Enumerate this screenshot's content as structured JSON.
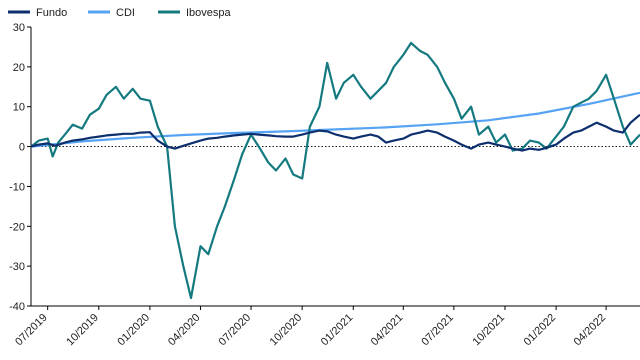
{
  "chart_data": {
    "type": "line",
    "title": "",
    "xlabel": "",
    "ylabel": "",
    "legend_position": "top-left",
    "grid": false,
    "zero_line": "dotted",
    "ylim": [
      -40,
      30
    ],
    "yticks": [
      30,
      20,
      10,
      0,
      -10,
      -20,
      -30,
      -40
    ],
    "xlim": [
      "2019-06-01",
      "2022-06-01"
    ],
    "xticks": [
      {
        "label": "07/2019",
        "date": "2019-07-01"
      },
      {
        "label": "10/2019",
        "date": "2019-10-01"
      },
      {
        "label": "01/2020",
        "date": "2020-01-01"
      },
      {
        "label": "04/2020",
        "date": "2020-04-01"
      },
      {
        "label": "07/2020",
        "date": "2020-07-01"
      },
      {
        "label": "10/2020",
        "date": "2020-10-01"
      },
      {
        "label": "01/2021",
        "date": "2021-01-01"
      },
      {
        "label": "04/2021",
        "date": "2021-04-01"
      },
      {
        "label": "07/2021",
        "date": "2021-07-01"
      },
      {
        "label": "10/2021",
        "date": "2021-10-01"
      },
      {
        "label": "01/2022",
        "date": "2022-01-01"
      },
      {
        "label": "04/2022",
        "date": "2022-04-01"
      }
    ],
    "series": [
      {
        "name": "Fundo",
        "color": "#0d2f6e",
        "points": [
          [
            "2019-06-01",
            0
          ],
          [
            "2019-06-15",
            0.5
          ],
          [
            "2019-07-01",
            0.8
          ],
          [
            "2019-07-15",
            0.2
          ],
          [
            "2019-08-01",
            1.0
          ],
          [
            "2019-08-15",
            1.5
          ],
          [
            "2019-09-01",
            1.8
          ],
          [
            "2019-09-15",
            2.2
          ],
          [
            "2019-10-01",
            2.5
          ],
          [
            "2019-10-15",
            2.8
          ],
          [
            "2019-11-01",
            3.0
          ],
          [
            "2019-11-15",
            3.2
          ],
          [
            "2019-12-01",
            3.2
          ],
          [
            "2019-12-15",
            3.5
          ],
          [
            "2020-01-01",
            3.6
          ],
          [
            "2020-01-15",
            1.5
          ],
          [
            "2020-02-01",
            0.0
          ],
          [
            "2020-02-15",
            -0.5
          ],
          [
            "2020-03-01",
            0.2
          ],
          [
            "2020-03-15",
            0.8
          ],
          [
            "2020-04-01",
            1.5
          ],
          [
            "2020-04-15",
            2.0
          ],
          [
            "2020-05-01",
            2.2
          ],
          [
            "2020-05-15",
            2.5
          ],
          [
            "2020-06-01",
            2.8
          ],
          [
            "2020-06-15",
            3.0
          ],
          [
            "2020-07-01",
            3.2
          ],
          [
            "2020-07-15",
            3.0
          ],
          [
            "2020-08-01",
            2.8
          ],
          [
            "2020-08-15",
            2.6
          ],
          [
            "2020-09-01",
            2.5
          ],
          [
            "2020-09-15",
            2.5
          ],
          [
            "2020-10-01",
            3.0
          ],
          [
            "2020-10-15",
            3.5
          ],
          [
            "2020-11-01",
            4.0
          ],
          [
            "2020-11-15",
            3.8
          ],
          [
            "2020-12-01",
            3.0
          ],
          [
            "2020-12-15",
            2.5
          ],
          [
            "2021-01-01",
            2.0
          ],
          [
            "2021-01-15",
            2.5
          ],
          [
            "2021-02-01",
            3.0
          ],
          [
            "2021-02-15",
            2.5
          ],
          [
            "2021-03-01",
            1.0
          ],
          [
            "2021-03-15",
            1.5
          ],
          [
            "2021-04-01",
            2.0
          ],
          [
            "2021-04-15",
            3.0
          ],
          [
            "2021-05-01",
            3.5
          ],
          [
            "2021-05-15",
            4.0
          ],
          [
            "2021-06-01",
            3.5
          ],
          [
            "2021-06-15",
            2.5
          ],
          [
            "2021-07-01",
            1.5
          ],
          [
            "2021-07-15",
            0.5
          ],
          [
            "2021-08-01",
            -0.5
          ],
          [
            "2021-08-15",
            0.5
          ],
          [
            "2021-09-01",
            1.0
          ],
          [
            "2021-09-15",
            0.5
          ],
          [
            "2021-10-01",
            0.0
          ],
          [
            "2021-10-15",
            -0.5
          ],
          [
            "2021-11-01",
            -1.0
          ],
          [
            "2021-11-15",
            -0.5
          ],
          [
            "2021-12-01",
            -0.8
          ],
          [
            "2021-12-15",
            -0.3
          ],
          [
            "2022-01-01",
            0.5
          ],
          [
            "2022-01-15",
            2.0
          ],
          [
            "2022-02-01",
            3.5
          ],
          [
            "2022-02-15",
            4.0
          ],
          [
            "2022-03-01",
            5.0
          ],
          [
            "2022-03-15",
            6.0
          ],
          [
            "2022-04-01",
            5.0
          ],
          [
            "2022-04-15",
            4.0
          ],
          [
            "2022-05-01",
            3.5
          ],
          [
            "2022-05-15",
            6.0
          ],
          [
            "2022-06-01",
            8.0
          ]
        ]
      },
      {
        "name": "CDI",
        "color": "#55a3f2",
        "points": [
          [
            "2019-06-01",
            0
          ],
          [
            "2019-09-01",
            1.3
          ],
          [
            "2019-12-01",
            2.2
          ],
          [
            "2020-03-01",
            2.9
          ],
          [
            "2020-06-01",
            3.4
          ],
          [
            "2020-09-01",
            3.8
          ],
          [
            "2020-12-01",
            4.3
          ],
          [
            "2021-03-01",
            4.8
          ],
          [
            "2021-06-01",
            5.6
          ],
          [
            "2021-09-01",
            6.6
          ],
          [
            "2021-12-01",
            8.3
          ],
          [
            "2022-03-01",
            10.7
          ],
          [
            "2022-06-01",
            13.5
          ]
        ]
      },
      {
        "name": "Ibovespa",
        "color": "#147a80",
        "points": [
          [
            "2019-06-01",
            0
          ],
          [
            "2019-06-15",
            1.5
          ],
          [
            "2019-07-01",
            2.0
          ],
          [
            "2019-07-10",
            -2.5
          ],
          [
            "2019-07-20",
            1.0
          ],
          [
            "2019-08-01",
            3.0
          ],
          [
            "2019-08-15",
            5.5
          ],
          [
            "2019-09-01",
            4.5
          ],
          [
            "2019-09-15",
            8.0
          ],
          [
            "2019-10-01",
            9.5
          ],
          [
            "2019-10-15",
            13.0
          ],
          [
            "2019-11-01",
            15.0
          ],
          [
            "2019-11-15",
            12.0
          ],
          [
            "2019-12-01",
            14.5
          ],
          [
            "2019-12-15",
            12.0
          ],
          [
            "2020-01-01",
            11.5
          ],
          [
            "2020-01-15",
            5.0
          ],
          [
            "2020-02-01",
            0.0
          ],
          [
            "2020-02-15",
            -20.0
          ],
          [
            "2020-03-01",
            -30.0
          ],
          [
            "2020-03-15",
            -38.0
          ],
          [
            "2020-04-01",
            -25.0
          ],
          [
            "2020-04-15",
            -27.0
          ],
          [
            "2020-05-01",
            -20.0
          ],
          [
            "2020-05-15",
            -15.0
          ],
          [
            "2020-06-01",
            -8.0
          ],
          [
            "2020-06-15",
            -2.0
          ],
          [
            "2020-07-01",
            3.0
          ],
          [
            "2020-07-15",
            0.0
          ],
          [
            "2020-08-01",
            -4.0
          ],
          [
            "2020-08-15",
            -6.0
          ],
          [
            "2020-09-01",
            -3.0
          ],
          [
            "2020-09-15",
            -7.0
          ],
          [
            "2020-10-01",
            -8.0
          ],
          [
            "2020-10-15",
            5.0
          ],
          [
            "2020-11-01",
            10.0
          ],
          [
            "2020-11-15",
            21.0
          ],
          [
            "2020-12-01",
            12.0
          ],
          [
            "2020-12-15",
            16.0
          ],
          [
            "2021-01-01",
            18.0
          ],
          [
            "2021-01-15",
            15.0
          ],
          [
            "2021-02-01",
            12.0
          ],
          [
            "2021-02-15",
            14.0
          ],
          [
            "2021-03-01",
            16.0
          ],
          [
            "2021-03-15",
            20.0
          ],
          [
            "2021-04-01",
            23.0
          ],
          [
            "2021-04-15",
            26.0
          ],
          [
            "2021-05-01",
            24.0
          ],
          [
            "2021-05-15",
            23.0
          ],
          [
            "2021-06-01",
            20.0
          ],
          [
            "2021-06-15",
            16.0
          ],
          [
            "2021-07-01",
            12.0
          ],
          [
            "2021-07-15",
            7.0
          ],
          [
            "2021-08-01",
            10.0
          ],
          [
            "2021-08-15",
            3.0
          ],
          [
            "2021-09-01",
            5.0
          ],
          [
            "2021-09-15",
            1.0
          ],
          [
            "2021-10-01",
            3.0
          ],
          [
            "2021-10-15",
            -1.0
          ],
          [
            "2021-11-01",
            -0.5
          ],
          [
            "2021-11-15",
            1.5
          ],
          [
            "2021-12-01",
            1.0
          ],
          [
            "2021-12-15",
            -0.5
          ],
          [
            "2022-01-01",
            2.5
          ],
          [
            "2022-01-15",
            5.0
          ],
          [
            "2022-02-01",
            10.0
          ],
          [
            "2022-02-15",
            11.0
          ],
          [
            "2022-03-01",
            12.0
          ],
          [
            "2022-03-15",
            14.0
          ],
          [
            "2022-04-01",
            18.0
          ],
          [
            "2022-04-15",
            12.0
          ],
          [
            "2022-05-01",
            5.0
          ],
          [
            "2022-05-15",
            0.5
          ],
          [
            "2022-06-01",
            3.0
          ]
        ]
      }
    ]
  }
}
